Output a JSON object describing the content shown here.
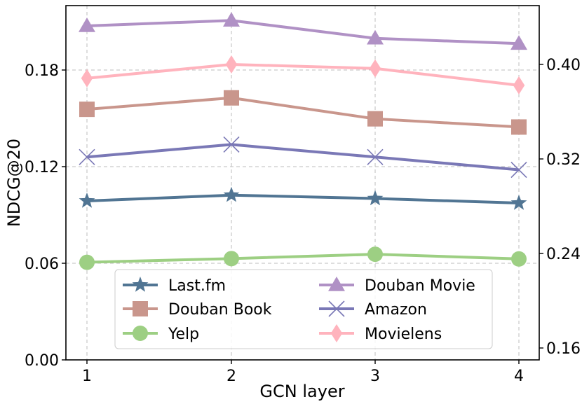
{
  "chart_data": {
    "type": "line",
    "xlabel": "GCN layer",
    "ylabel": "NDCG@20",
    "x": [
      1,
      2,
      3,
      4
    ],
    "ylim_left": [
      0.0,
      0.22
    ],
    "ylim_right": [
      0.16,
      0.44
    ],
    "yticks_left": [
      "0.00",
      "0.06",
      "0.12",
      "0.18"
    ],
    "yticks_right": [
      "0.16",
      "0.24",
      "0.32",
      "0.40"
    ],
    "xticks": [
      "1",
      "2",
      "3",
      "4"
    ],
    "grid": true,
    "legend_position": "lower center",
    "series": [
      {
        "name": "Last.fm",
        "axis": "left",
        "color": "#517593",
        "marker": "star",
        "values": [
          0.0987,
          0.1023,
          0.1002,
          0.0974
        ]
      },
      {
        "name": "Douban Book",
        "axis": "left",
        "color": "#c9968c",
        "marker": "square",
        "values": [
          0.1556,
          0.1627,
          0.1497,
          0.1446
        ]
      },
      {
        "name": "Yelp",
        "axis": "left",
        "color": "#9dcf83",
        "marker": "circle",
        "values": [
          0.0606,
          0.0629,
          0.0656,
          0.0627
        ]
      },
      {
        "name": "Douban Movie",
        "axis": "right",
        "color": "#b091c5",
        "marker": "triangle",
        "values": [
          0.4326,
          0.4372,
          0.4221,
          0.4176
        ]
      },
      {
        "name": "Amazon",
        "axis": "right",
        "color": "#7a78b6",
        "marker": "x",
        "values": [
          0.3216,
          0.3322,
          0.3216,
          0.3108
        ]
      },
      {
        "name": "Movielens",
        "axis": "right",
        "color": "#ffb3bd",
        "marker": "diamond",
        "values": [
          0.3883,
          0.4,
          0.3966,
          0.3823
        ]
      }
    ]
  }
}
